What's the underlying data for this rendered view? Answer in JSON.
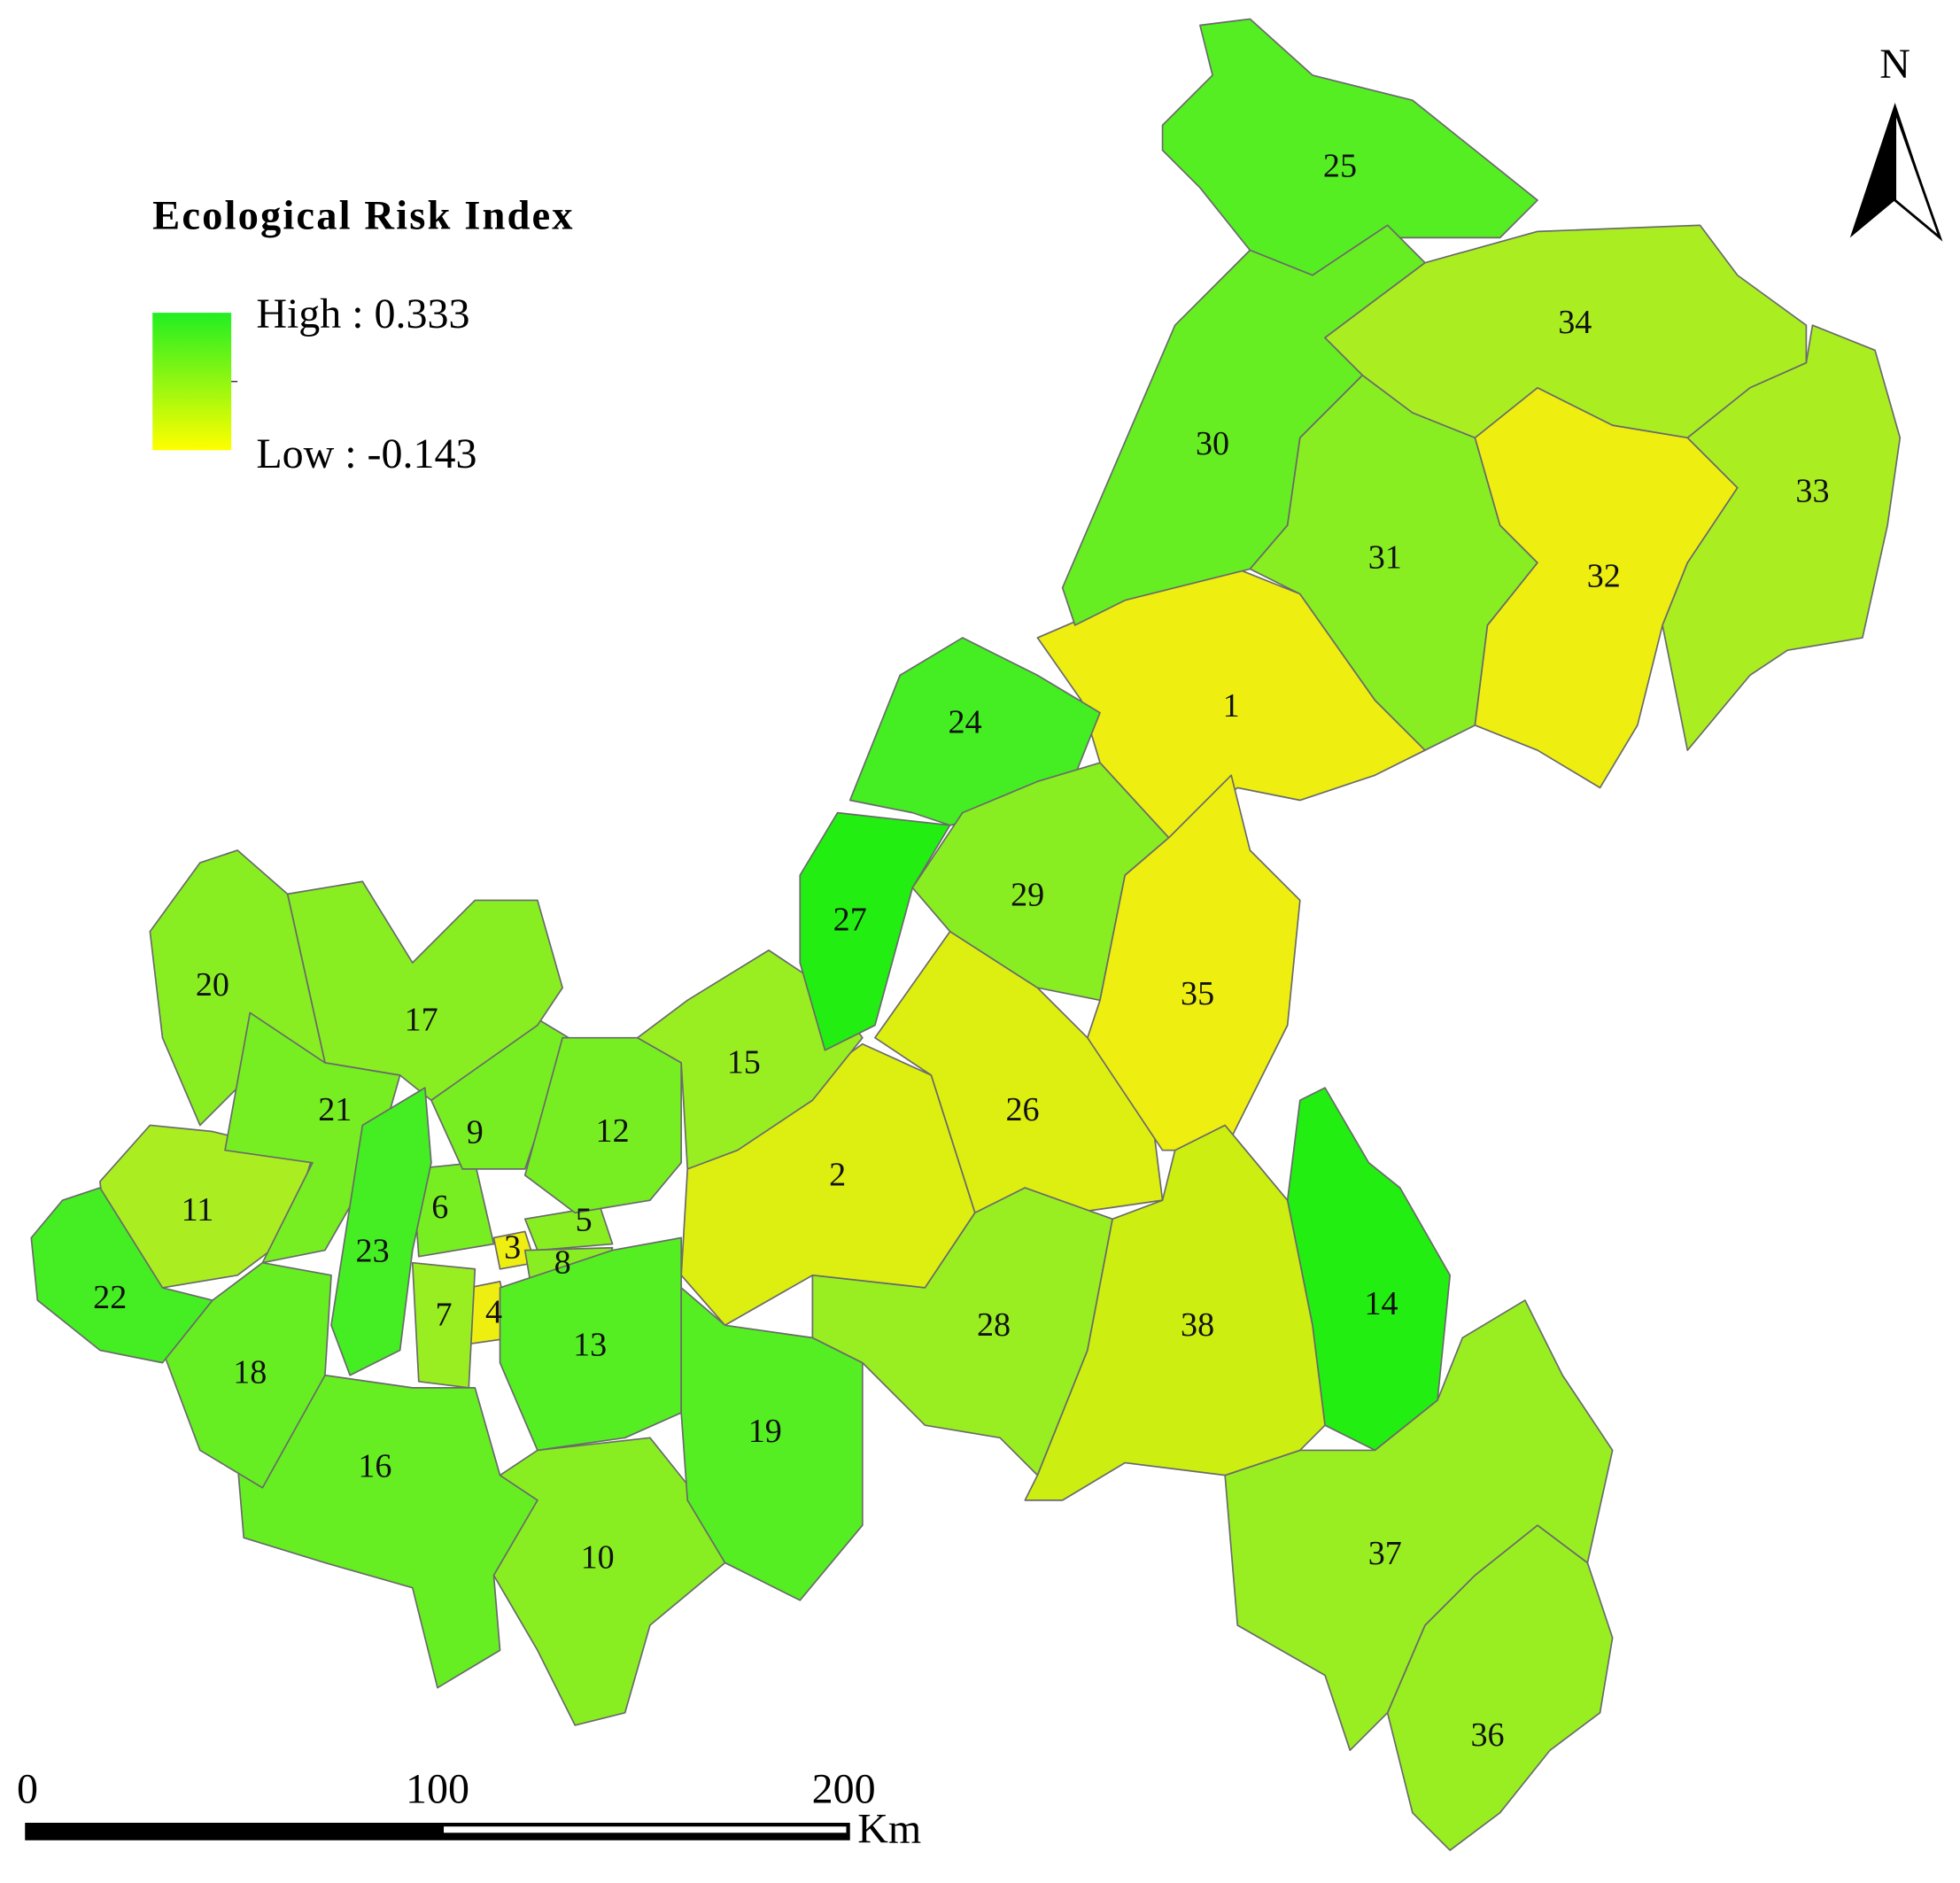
{
  "legend": {
    "title": "Ecological Risk Index",
    "high": "High : 0.333",
    "low": "Low : -0.143"
  },
  "north": "N",
  "scale_bar": {
    "labels": [
      "0",
      "100",
      "200"
    ],
    "unit": "Km"
  },
  "regions": [
    "1",
    "2",
    "3",
    "4",
    "5",
    "6",
    "7",
    "8",
    "9",
    "10",
    "11",
    "12",
    "13",
    "14",
    "15",
    "16",
    "17",
    "18",
    "19",
    "20",
    "21",
    "22",
    "23",
    "24",
    "25",
    "26",
    "27",
    "28",
    "29",
    "30",
    "31",
    "32",
    "33",
    "34",
    "35",
    "36",
    "37",
    "38"
  ]
}
